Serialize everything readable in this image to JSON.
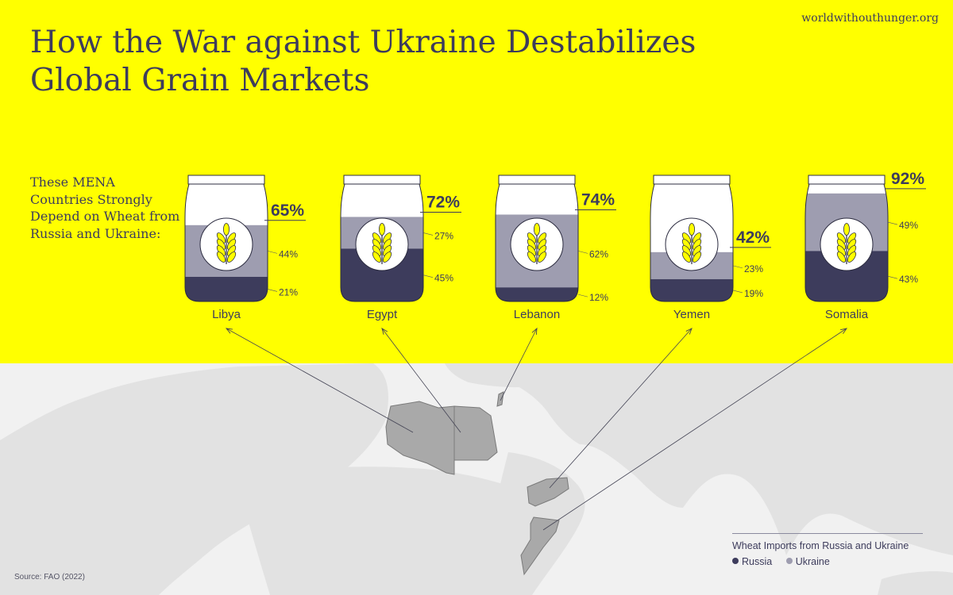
{
  "header": {
    "title_line1": "How the War against Ukraine Destabilizes",
    "title_line2": "Global Grain Markets",
    "brand": "worldwithouthunger.org",
    "subtitle": "These MENA Countries Strongly Depend on Wheat from Russia and Ukraine:"
  },
  "colors": {
    "background": "#ffff00",
    "map_background": "#f1f1f1",
    "land": "#e2e2e2",
    "highlight_country": "#a9a9a9",
    "russia": "#3d3c5c",
    "ukraine": "#9e9db0",
    "text": "#3d3c5c"
  },
  "chart_data": {
    "type": "bar",
    "stacked": true,
    "unit": "%",
    "ylim": [
      0,
      100
    ],
    "categories": [
      "Libya",
      "Egypt",
      "Lebanon",
      "Yemen",
      "Somalia"
    ],
    "series": [
      {
        "name": "Russia",
        "values": [
          21,
          45,
          12,
          19,
          43
        ]
      },
      {
        "name": "Ukraine",
        "values": [
          44,
          27,
          62,
          23,
          49
        ]
      }
    ],
    "totals": [
      65,
      72,
      74,
      42,
      92
    ],
    "legend": {
      "title": "Wheat Imports from Russia and Ukraine",
      "position": "bottom-right"
    }
  },
  "source": "Source: FAO (2022)"
}
